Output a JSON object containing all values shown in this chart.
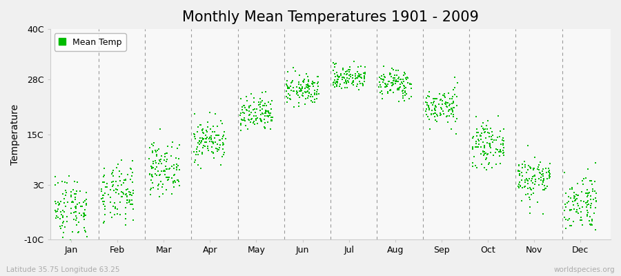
{
  "title": "Monthly Mean Temperatures 1901 - 2009",
  "ylabel": "Temperature",
  "xlabel_months": [
    "Jan",
    "Feb",
    "Mar",
    "Apr",
    "May",
    "Jun",
    "Jul",
    "Aug",
    "Sep",
    "Oct",
    "Nov",
    "Dec"
  ],
  "month_means": [
    -2.5,
    0.5,
    7.0,
    13.5,
    19.5,
    25.5,
    28.5,
    27.0,
    21.5,
    12.5,
    4.5,
    -1.0
  ],
  "month_stds": [
    4.0,
    3.5,
    3.0,
    2.5,
    2.2,
    1.8,
    1.5,
    1.8,
    2.2,
    2.5,
    2.8,
    3.5
  ],
  "n_years": 109,
  "ylim": [
    -10,
    40
  ],
  "yticks": [
    -10,
    3,
    15,
    28,
    40
  ],
  "ytick_labels": [
    "-10C",
    "3C",
    "15C",
    "28C",
    "40C"
  ],
  "dot_color": "#00bb00",
  "dot_size": 3,
  "legend_label": "Mean Temp",
  "bg_color": "#f0f0f0",
  "plot_bg_color": "#f8f8f8",
  "subtitle_left": "Latitude 35.75 Longitude 63.25",
  "subtitle_right": "worldspecies.org",
  "title_fontsize": 15,
  "axis_fontsize": 9,
  "seed": 42
}
